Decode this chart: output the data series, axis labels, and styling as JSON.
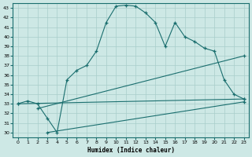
{
  "xlabel": "Humidex (Indice chaleur)",
  "bg_color": "#cde8e5",
  "grid_color": "#a8ceca",
  "line_color": "#1a6e6e",
  "xlim": [
    -0.5,
    23.5
  ],
  "ylim": [
    29.5,
    43.5
  ],
  "xticks": [
    0,
    1,
    2,
    3,
    4,
    5,
    6,
    7,
    8,
    9,
    10,
    11,
    12,
    13,
    14,
    15,
    16,
    17,
    18,
    19,
    20,
    21,
    22,
    23
  ],
  "yticks": [
    30,
    31,
    32,
    33,
    34,
    35,
    36,
    37,
    38,
    39,
    40,
    41,
    42,
    43
  ],
  "main_x": [
    0,
    1,
    2,
    3,
    4,
    5,
    6,
    7,
    8,
    9,
    10,
    11,
    12,
    13,
    14,
    15,
    16,
    17,
    18,
    19,
    20,
    21,
    22,
    23
  ],
  "main_y": [
    33.0,
    33.3,
    33.0,
    31.5,
    30.0,
    35.5,
    36.5,
    37.0,
    38.5,
    41.5,
    43.2,
    43.3,
    43.2,
    42.5,
    41.5,
    39.0,
    41.5,
    40.0,
    39.5,
    38.8,
    38.5,
    35.5,
    34.0,
    33.5
  ],
  "line1_x": [
    0,
    23
  ],
  "line1_y": [
    33.0,
    33.5
  ],
  "line2_x": [
    2,
    23
  ],
  "line2_y": [
    32.5,
    38.0
  ],
  "line3_x": [
    3,
    23
  ],
  "line3_y": [
    30.0,
    33.2
  ]
}
